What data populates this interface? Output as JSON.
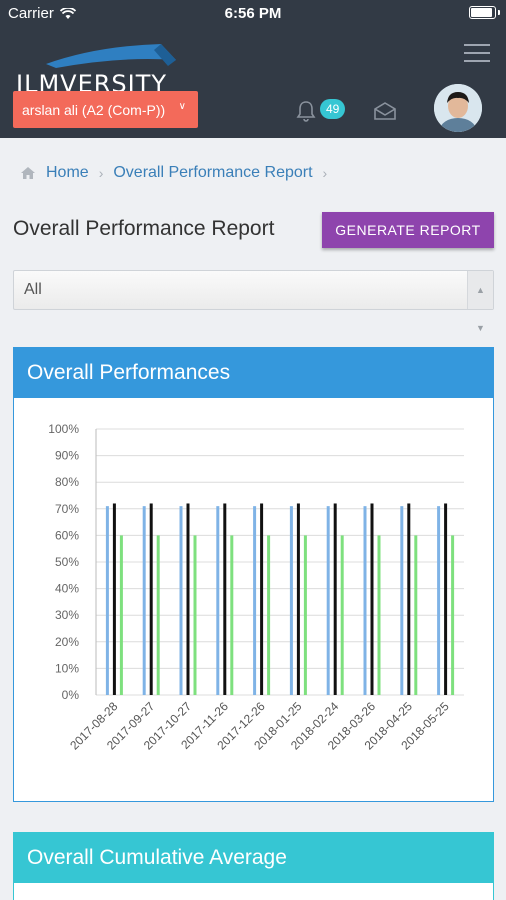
{
  "status_bar": {
    "carrier": "Carrier",
    "time": "6:56 PM"
  },
  "header": {
    "logo_text": "ILMVERSITY",
    "user_select": "arslan ali (A2 (Com-P))",
    "notification_count": "49"
  },
  "breadcrumb": {
    "home": "Home",
    "current": "Overall Performance Report"
  },
  "page": {
    "title": "Overall Performance Report",
    "generate_button": "GENERATE REPORT",
    "filter_value": "All"
  },
  "panels": {
    "performance_title": "Overall Performances",
    "cumulative_title": "Overall Cumulative Average"
  },
  "chart_data": {
    "type": "bar",
    "categories": [
      "2017-08-28",
      "2017-09-27",
      "2017-10-27",
      "2017-11-26",
      "2017-12-26",
      "2018-01-25",
      "2018-02-24",
      "2018-03-26",
      "2018-04-25",
      "2018-05-25"
    ],
    "y_ticks": [
      "0%",
      "10%",
      "20%",
      "30%",
      "40%",
      "50%",
      "60%",
      "70%",
      "80%",
      "90%",
      "100%"
    ],
    "ylim": [
      0,
      100
    ],
    "grid": true,
    "series": [
      {
        "values": [
          71,
          71,
          71,
          71,
          71,
          71,
          71,
          71,
          71,
          71
        ],
        "color": "#7fb3e6"
      },
      {
        "values": [
          72,
          72,
          72,
          72,
          72,
          72,
          72,
          72,
          72,
          72
        ],
        "color": "#111111"
      },
      {
        "values": [
          60,
          60,
          60,
          60,
          60,
          60,
          60,
          60,
          60,
          60
        ],
        "color": "#7ee07e"
      }
    ]
  }
}
